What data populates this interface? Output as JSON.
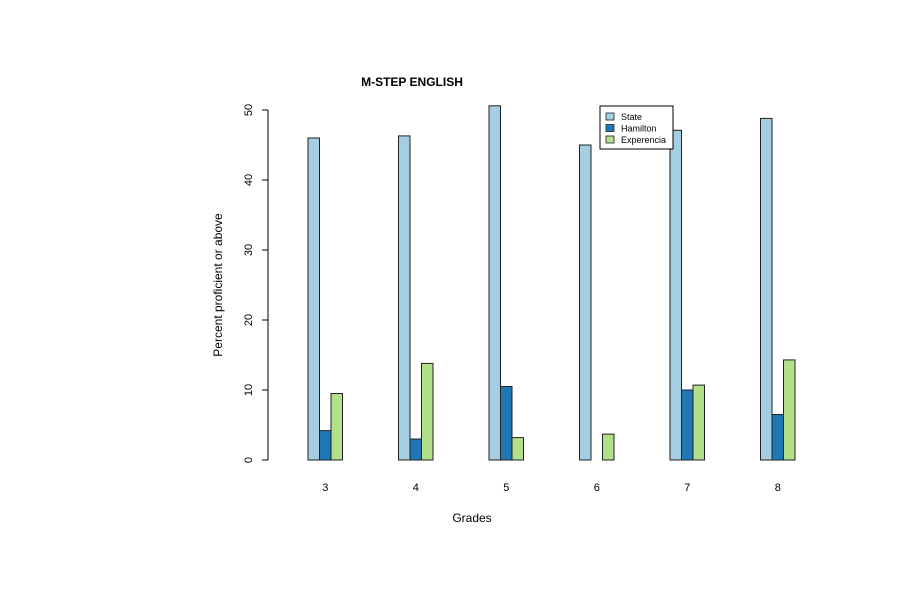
{
  "chart_data": {
    "type": "bar",
    "title": "M-STEP ENGLISH",
    "xlabel": "Grades",
    "ylabel": "Percent proficient or above",
    "categories": [
      "3",
      "4",
      "5",
      "6",
      "7",
      "8"
    ],
    "series": [
      {
        "name": "State",
        "color": "#a6cee3",
        "values": [
          46.0,
          46.3,
          50.6,
          45.0,
          47.1,
          48.8
        ]
      },
      {
        "name": "Hamilton",
        "color": "#1f78b4",
        "values": [
          4.2,
          3.0,
          10.5,
          0.0,
          10.0,
          6.5
        ]
      },
      {
        "name": "Experencia",
        "color": "#b2df8a",
        "values": [
          9.5,
          13.8,
          3.2,
          3.7,
          10.7,
          14.3
        ]
      }
    ],
    "yticks": [
      0,
      10,
      20,
      30,
      40,
      50
    ],
    "ylim": [
      0,
      50
    ],
    "grid": false,
    "legend_position": "top-right"
  }
}
